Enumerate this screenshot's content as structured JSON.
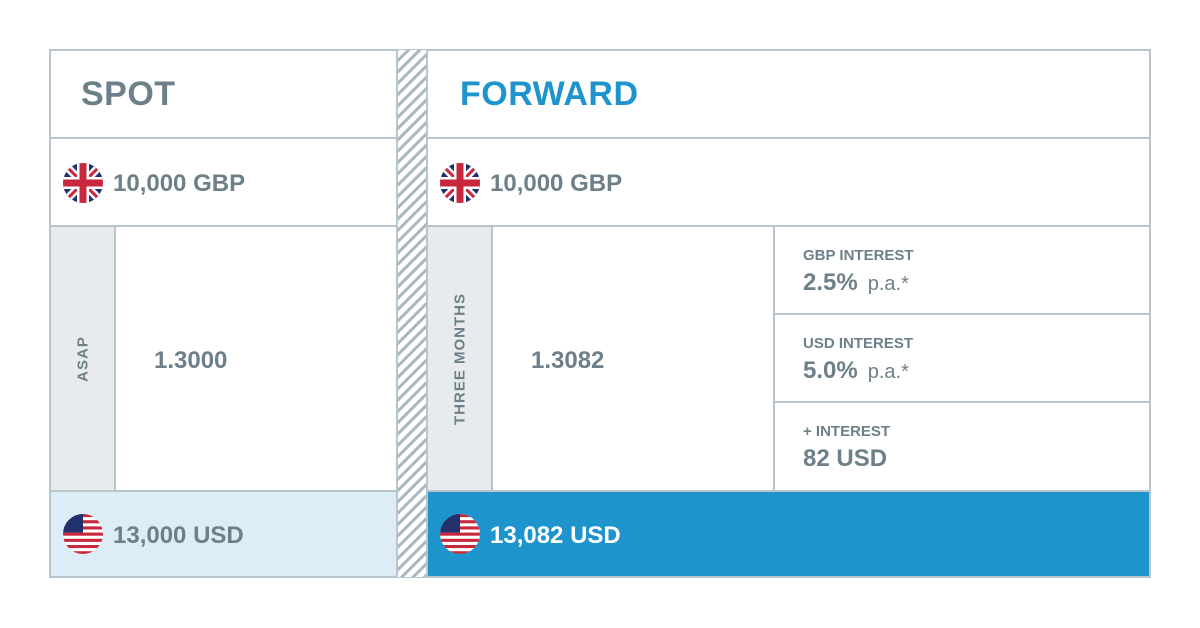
{
  "spot": {
    "title": "SPOT",
    "amount_from": "10,000 GBP",
    "term": "ASAP",
    "rate": "1.3000",
    "amount_to": "13,000 USD"
  },
  "forward": {
    "title": "FORWARD",
    "amount_from": "10,000 GBP",
    "term": "THREE MONTHS",
    "rate": "1.3082",
    "gbp_interest": {
      "label": "GBP INTEREST",
      "value": "2.5%",
      "unit": "p.a.*"
    },
    "usd_interest": {
      "label": "USD INTEREST",
      "value": "5.0%",
      "unit": "p.a.*"
    },
    "plus_interest": {
      "label": "+ INTEREST",
      "value": "82 USD"
    },
    "amount_to": "13,082 USD"
  },
  "colors": {
    "border": "#b9c5cc",
    "text_gray": "#6d7f88",
    "forward_blue": "#1e94cc",
    "spot_result_bg": "#dcedf6",
    "term_bg": "#e7ebed"
  },
  "icons": [
    "uk-flag-icon",
    "us-flag-icon"
  ]
}
